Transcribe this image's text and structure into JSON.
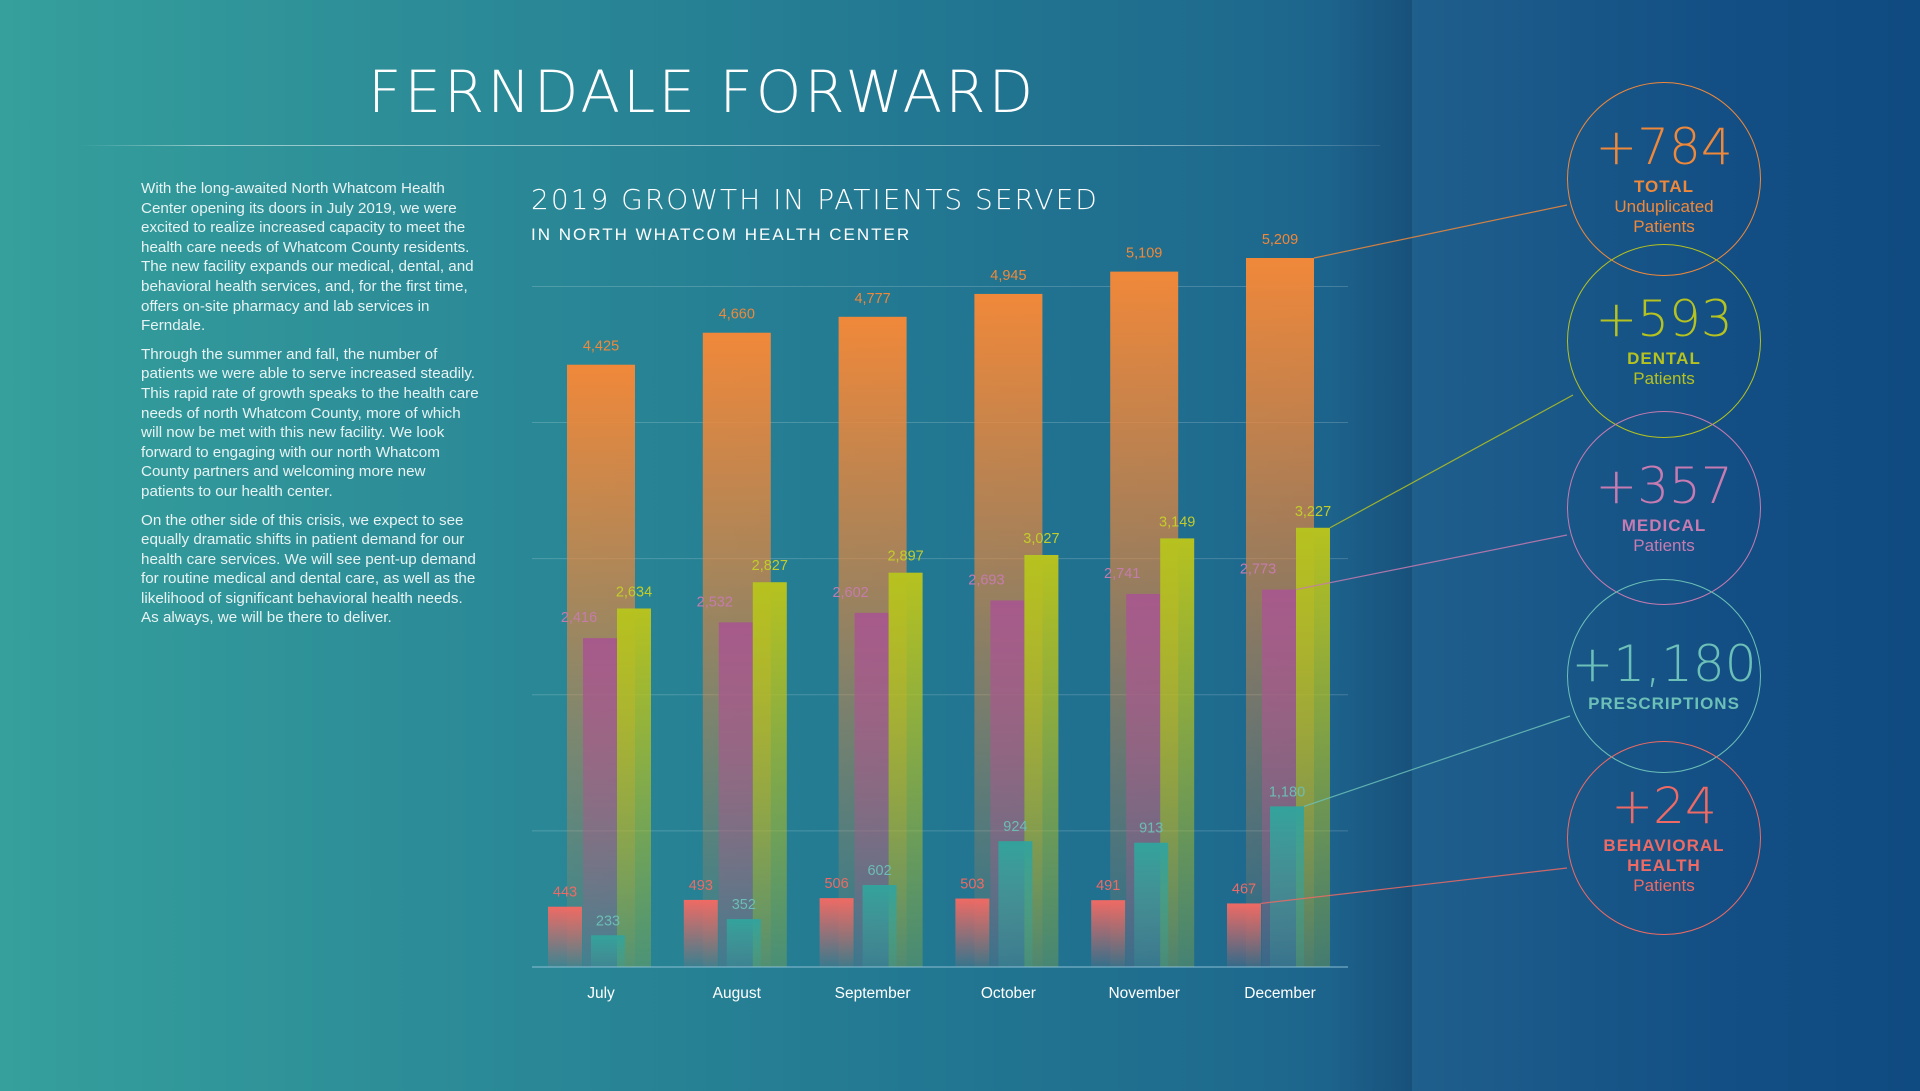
{
  "page": {
    "title": "FERNDALE FORWARD",
    "paragraphs": [
      "With the long-awaited North Whatcom Health Center opening its doors in July 2019, we were excited to realize increased capacity to meet the health care needs of Whatcom County residents. The new facility expands our medical, dental, and behavioral health services, and, for the first time, offers on-site pharmacy and lab services in Ferndale.",
      "Through the summer and fall, the number of patients we were able to serve increased steadily. This rapid rate of growth speaks to the health care needs of north Whatcom County, more of which will now be met with this new facility. We look forward to engaging with our north Whatcom County partners and welcoming more new patients to our health center.",
      "On the other side of this crisis, we expect to see equally dramatic shifts in patient demand for our health care services. We will see pent-up demand for routine medical and dental care, as well as the likelihood of significant behavioral health needs. As always, we will be there to deliver."
    ]
  },
  "chart_data": {
    "type": "bar",
    "title": "2019 GROWTH IN PATIENTS SERVED",
    "subtitle": "IN NORTH WHATCOM HEALTH CENTER",
    "xlabel": "",
    "ylabel": "",
    "ylim": [
      0,
      5500
    ],
    "grid": true,
    "legend": "none",
    "categories": [
      "July",
      "August",
      "September",
      "October",
      "November",
      "December"
    ],
    "series": [
      {
        "name": "Total Unduplicated Patients",
        "color": "#f0883a",
        "values": [
          4425,
          4660,
          4777,
          4945,
          5109,
          5209
        ]
      },
      {
        "name": "Behavioral Health Patients",
        "color": "#ef6a64",
        "values": [
          443,
          493,
          506,
          503,
          491,
          467
        ]
      },
      {
        "name": "Medical Patients",
        "color": "#a25a8e",
        "values": [
          2416,
          2532,
          2602,
          2693,
          2741,
          2773
        ]
      },
      {
        "name": "Prescriptions",
        "color": "#33a39c",
        "values": [
          233,
          352,
          602,
          924,
          913,
          1180
        ]
      },
      {
        "name": "Dental Patients",
        "color": "#b6c21f",
        "values": [
          2634,
          2827,
          2897,
          3027,
          3149,
          3227
        ]
      }
    ],
    "value_labels": {
      "total": [
        "4,425",
        "4,660",
        "4,777",
        "4,945",
        "5,109",
        "5,209"
      ],
      "behavioral": [
        "443",
        "493",
        "506",
        "503",
        "491",
        "467"
      ],
      "medical": [
        "2,416",
        "2,532",
        "2,602",
        "2,693",
        "2,741",
        "2,773"
      ],
      "prescriptions": [
        "233",
        "352",
        "602",
        "924",
        "913",
        "1,180"
      ],
      "dental": [
        "2,634",
        "2,827",
        "2,897",
        "3,027",
        "3,149",
        "3,227"
      ]
    },
    "annotations": [
      {
        "value": "+784",
        "label": "TOTAL",
        "sublabel": "Unduplicated Patients",
        "color": "#f0883a",
        "series": "total"
      },
      {
        "value": "+593",
        "label": "DENTAL",
        "sublabel": "Patients",
        "color": "#b6c21f",
        "series": "dental"
      },
      {
        "value": "+357",
        "label": "MEDICAL",
        "sublabel": "Patients",
        "color": "#c77bb0",
        "series": "medical"
      },
      {
        "value": "+1,180",
        "label": "PRESCRIPTIONS",
        "sublabel": "",
        "color": "#6cc0b8",
        "series": "prescriptions"
      },
      {
        "value": "+24",
        "label": "BEHAVIORAL HEALTH",
        "sublabel": "Patients",
        "color": "#ef6a64",
        "series": "behavioral"
      }
    ]
  }
}
